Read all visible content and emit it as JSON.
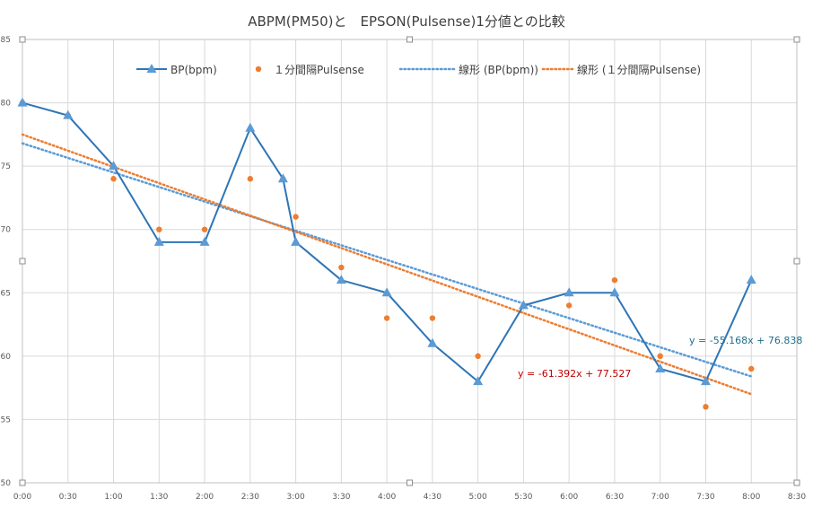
{
  "chart_data": {
    "type": "line",
    "title": "ABPM(PM50)と　EPSON(Pulsense)1分値との比較",
    "xlabel": "",
    "ylabel": "",
    "xlim": [
      0,
      8.5
    ],
    "ylim": [
      50,
      85
    ],
    "x_ticks": [
      0,
      0.5,
      1,
      1.5,
      2,
      2.5,
      3,
      3.5,
      4,
      4.5,
      5,
      5.5,
      6,
      6.5,
      7,
      7.5,
      8,
      8.5
    ],
    "x_tick_labels": [
      "0:00",
      "0:30",
      "1:00",
      "1:30",
      "2:00",
      "2:30",
      "3:00",
      "3:30",
      "4:00",
      "4:30",
      "5:00",
      "5:30",
      "6:00",
      "6:30",
      "7:00",
      "7:30",
      "8:00",
      "8:30"
    ],
    "y_ticks": [
      50,
      55,
      60,
      65,
      70,
      75,
      80,
      85
    ],
    "y_tick_labels": [
      "50",
      "55",
      "60",
      "65",
      "70",
      "75",
      "80",
      "85"
    ],
    "grid": true,
    "legend_position": "top",
    "series": [
      {
        "name": "BP(bpm)",
        "style": "line-triangle",
        "color": "#2E75B6",
        "marker_color": "#5B9BD5",
        "x": [
          0,
          0.5,
          1,
          1.5,
          2,
          2.5,
          2.86,
          3,
          3.5,
          4,
          4.5,
          5,
          5.5,
          6,
          6.5,
          7,
          7.5,
          8
        ],
        "y": [
          80,
          79,
          75,
          69,
          69,
          78,
          74,
          69,
          66,
          65,
          61,
          58,
          64,
          65,
          65,
          59,
          58,
          66
        ]
      },
      {
        "name": "１分間隔Pulsense",
        "style": "scatter-dot",
        "color": "#ED7D31",
        "x": [
          0,
          0.5,
          1,
          1.5,
          2,
          2.5,
          2.86,
          3,
          3.5,
          4,
          4.5,
          5,
          5.5,
          6,
          6.5,
          7,
          7.5,
          8
        ],
        "y": [
          80,
          79,
          74,
          70,
          70,
          74,
          74,
          71,
          67,
          63,
          63,
          60,
          64,
          64,
          66,
          60,
          56,
          59
        ]
      },
      {
        "name": "線形 (BP(bpm))",
        "style": "trend-dotted",
        "color": "#5B9BD5",
        "x": [
          0,
          8
        ],
        "y": [
          76.8,
          58.4
        ]
      },
      {
        "name": "線形 (１分間隔Pulsense)",
        "style": "trend-dotted",
        "color": "#ED7D31",
        "x": [
          0,
          8
        ],
        "y": [
          77.5,
          57.0
        ]
      }
    ],
    "annotations": [
      {
        "text": "y = -55.168x + 76.838",
        "color": "#1F6E8C"
      },
      {
        "text": "y = -61.392x + 77.527",
        "color": "#C00000"
      }
    ]
  }
}
